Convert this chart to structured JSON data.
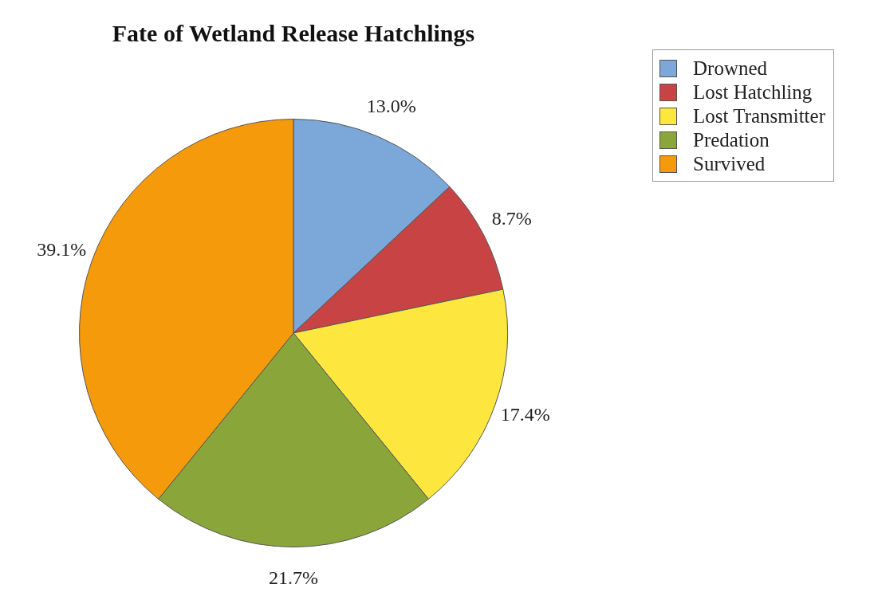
{
  "chart_data": {
    "type": "pie",
    "title": "Fate of Wetland Release Hatchlings",
    "categories": [
      "Drowned",
      "Lost Hatchling",
      "Lost Transmitter",
      "Predation",
      "Survived"
    ],
    "values": [
      13.0,
      8.7,
      17.4,
      21.7,
      39.1
    ],
    "value_labels": [
      "13.0%",
      "8.7%",
      "17.4%",
      "21.7%",
      "39.1%"
    ],
    "colors": [
      "#7ba7d9",
      "#c84444",
      "#fde73f",
      "#8aa63a",
      "#f59a0a"
    ],
    "legend": "top right"
  }
}
